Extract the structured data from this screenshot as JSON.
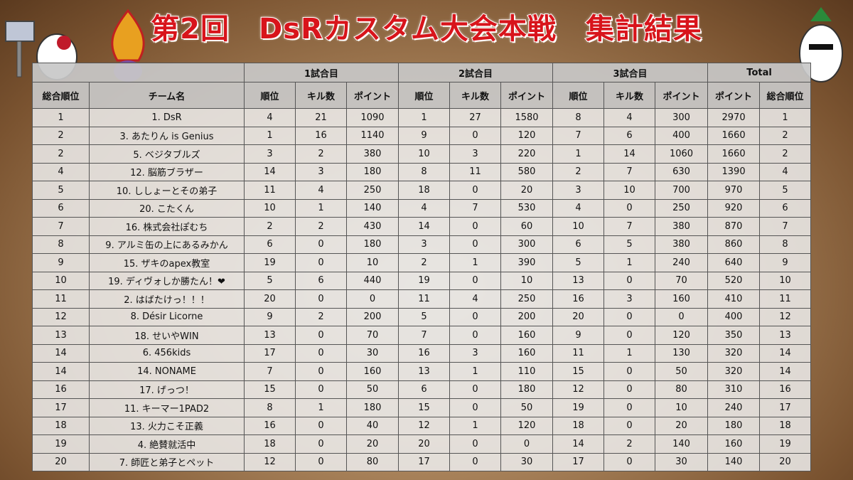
{
  "header": {
    "title": "第2回　DsRカスタム大会本戦　集計結果"
  },
  "table": {
    "groups": [
      "1試合目",
      "2試合目",
      "3試合目",
      "Total"
    ],
    "columns": [
      "総合順位",
      "チーム名",
      "順位",
      "キル数",
      "ポイント",
      "順位",
      "キル数",
      "ポイント",
      "順位",
      "キル数",
      "ポイント",
      "ポイント",
      "総合順位"
    ],
    "rows": [
      [
        1,
        "1. DsR",
        4,
        21,
        1090,
        1,
        27,
        1580,
        8,
        4,
        300,
        2970,
        1
      ],
      [
        2,
        "3. あたりん is Genius",
        1,
        16,
        1140,
        9,
        0,
        120,
        7,
        6,
        400,
        1660,
        2
      ],
      [
        2,
        "5. ベジタブルズ",
        3,
        2,
        380,
        10,
        3,
        220,
        1,
        14,
        1060,
        1660,
        2
      ],
      [
        4,
        "12. 脳筋ブラザー",
        14,
        3,
        180,
        8,
        11,
        580,
        2,
        7,
        630,
        1390,
        4
      ],
      [
        5,
        "10. ししょーとその弟子",
        11,
        4,
        250,
        18,
        0,
        20,
        3,
        10,
        700,
        970,
        5
      ],
      [
        6,
        "20. こたくん",
        10,
        1,
        140,
        4,
        7,
        530,
        4,
        0,
        250,
        920,
        6
      ],
      [
        7,
        "16. 株式会社ぽむち",
        2,
        2,
        430,
        14,
        0,
        60,
        10,
        7,
        380,
        870,
        7
      ],
      [
        8,
        "9. アルミ缶の上にあるみかん",
        6,
        0,
        180,
        3,
        0,
        300,
        6,
        5,
        380,
        860,
        8
      ],
      [
        9,
        "15. ザキのapex教室",
        19,
        0,
        10,
        2,
        1,
        390,
        5,
        1,
        240,
        640,
        9
      ],
      [
        10,
        "19. ディヴォしか勝たん！❤",
        5,
        6,
        440,
        19,
        0,
        10,
        13,
        0,
        70,
        520,
        10
      ],
      [
        11,
        "2. はばたけっ！！！",
        20,
        0,
        0,
        11,
        4,
        250,
        16,
        3,
        160,
        410,
        11
      ],
      [
        12,
        "8.  Désir Licorne",
        9,
        2,
        200,
        5,
        0,
        200,
        20,
        0,
        0,
        400,
        12
      ],
      [
        13,
        "18. せいやWIN",
        13,
        0,
        70,
        7,
        0,
        160,
        9,
        0,
        120,
        350,
        13
      ],
      [
        14,
        "6.  456kids",
        17,
        0,
        30,
        16,
        3,
        160,
        11,
        1,
        130,
        320,
        14
      ],
      [
        14,
        "14. NONAME",
        7,
        0,
        160,
        13,
        1,
        110,
        15,
        0,
        50,
        320,
        14
      ],
      [
        16,
        "17. げっつ！",
        15,
        0,
        50,
        6,
        0,
        180,
        12,
        0,
        80,
        310,
        16
      ],
      [
        17,
        "11. キーマー1PAD2",
        8,
        1,
        180,
        15,
        0,
        50,
        19,
        0,
        10,
        240,
        17
      ],
      [
        18,
        "13. 火力こそ正義",
        16,
        0,
        40,
        12,
        1,
        120,
        18,
        0,
        20,
        180,
        18
      ],
      [
        19,
        "4.  絶賛就活中",
        18,
        0,
        20,
        20,
        0,
        0,
        14,
        2,
        140,
        160,
        19
      ],
      [
        20,
        "7. 師匠と弟子とペット",
        12,
        0,
        80,
        17,
        0,
        30,
        17,
        0,
        30,
        140,
        20
      ]
    ]
  }
}
